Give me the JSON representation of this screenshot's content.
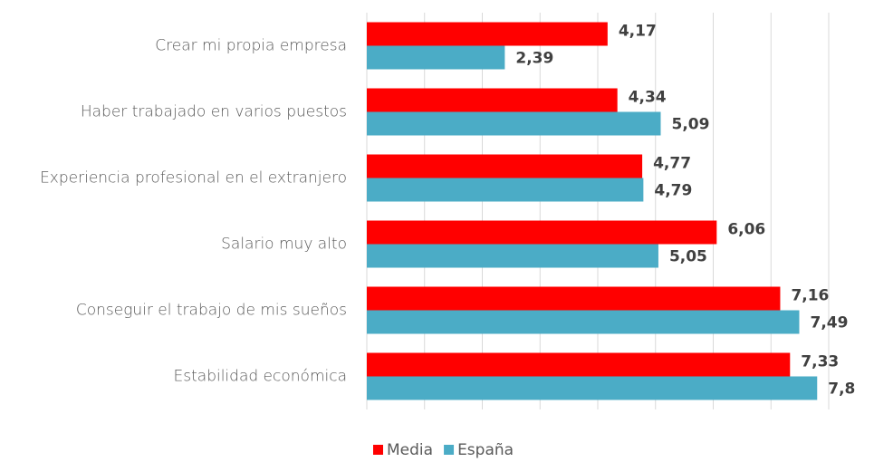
{
  "chart_data": {
    "type": "bar",
    "orientation": "horizontal",
    "categories": [
      "Crear mi propia empresa",
      "Haber trabajado en varios puestos",
      "Experiencia profesional en el extranjero",
      "Salario muy alto",
      "Conseguir el trabajo de mis sueños",
      "Estabilidad económica"
    ],
    "series": [
      {
        "name": "Media",
        "color": "#ff0000",
        "values": [
          4.17,
          4.34,
          4.77,
          6.06,
          7.16,
          7.33
        ],
        "value_labels": [
          "4,17",
          "4,34",
          "4,77",
          "6,06",
          "7,16",
          "7,33"
        ]
      },
      {
        "name": "España",
        "color": "#4bacc6",
        "values": [
          2.39,
          5.09,
          4.79,
          5.05,
          7.49,
          7.8
        ],
        "value_labels": [
          "2,39",
          "5,09",
          "4,79",
          "5,05",
          "7,49",
          "7,8"
        ]
      }
    ],
    "xlim": [
      0,
      8
    ],
    "xticks": [
      0,
      1,
      2,
      3,
      4,
      5,
      6,
      7,
      8
    ],
    "grid": true,
    "legend": "bottom"
  }
}
